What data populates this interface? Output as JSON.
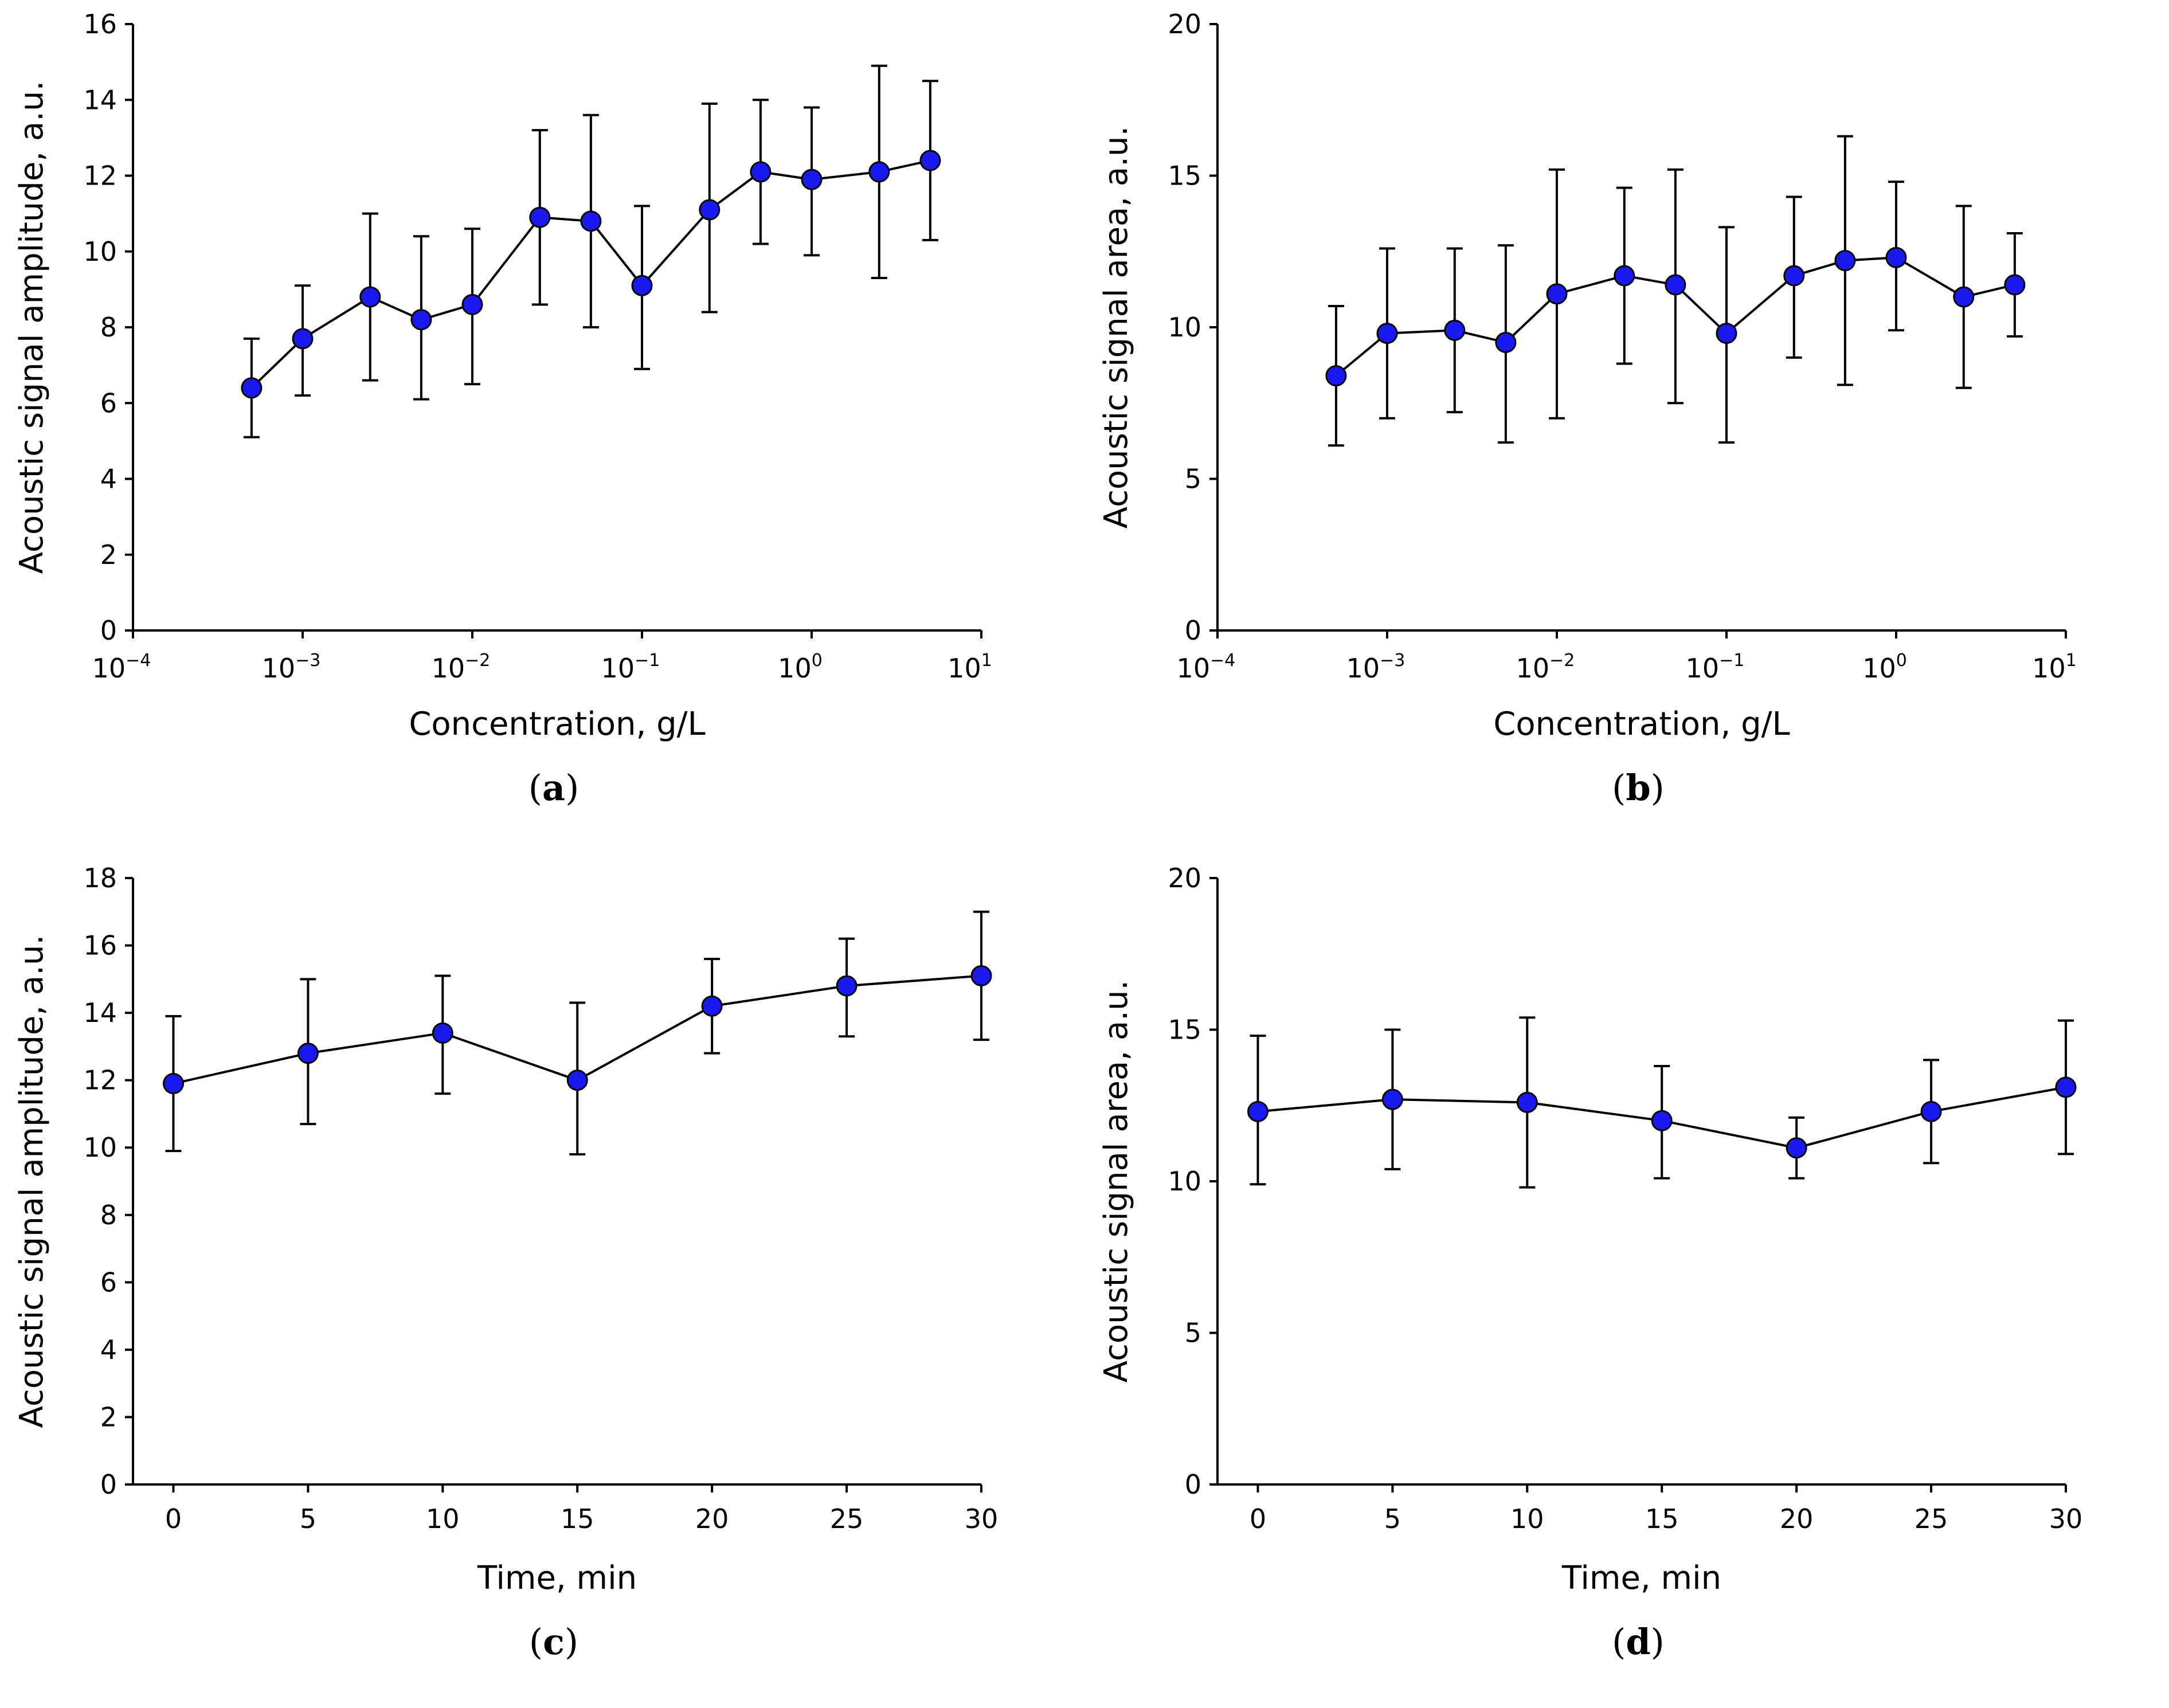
{
  "colors": {
    "marker": "#1a1af0",
    "axis": "#000000",
    "background": "#ffffff"
  },
  "chart_data": [
    {
      "id": "a",
      "type": "line",
      "xscale": "log",
      "panel_label": "a",
      "xlabel": "Concentration, g/L",
      "ylabel": "Acoustic signal amplitude, a.u.",
      "xlim": [
        0.0001,
        10
      ],
      "ylim": [
        0,
        16
      ],
      "yticks": [
        0,
        2,
        4,
        6,
        8,
        10,
        12,
        14,
        16
      ],
      "xticks": [
        {
          "value": 0.0001,
          "base": "10",
          "exp": "−4"
        },
        {
          "value": 0.001,
          "base": "10",
          "exp": "−3"
        },
        {
          "value": 0.01,
          "base": "10",
          "exp": "−2"
        },
        {
          "value": 0.1,
          "base": "10",
          "exp": "−1"
        },
        {
          "value": 1,
          "base": "10",
          "exp": "0"
        },
        {
          "value": 10,
          "base": "10",
          "exp": "1"
        }
      ],
      "points": [
        {
          "x": 0.0005,
          "y": 6.4,
          "lo": 5.1,
          "hi": 7.7
        },
        {
          "x": 0.001,
          "y": 7.7,
          "lo": 6.2,
          "hi": 9.1
        },
        {
          "x": 0.0025,
          "y": 8.8,
          "lo": 6.6,
          "hi": 11.0
        },
        {
          "x": 0.005,
          "y": 8.2,
          "lo": 6.1,
          "hi": 10.4
        },
        {
          "x": 0.01,
          "y": 8.6,
          "lo": 6.5,
          "hi": 10.6
        },
        {
          "x": 0.025,
          "y": 10.9,
          "lo": 8.6,
          "hi": 13.2
        },
        {
          "x": 0.05,
          "y": 10.8,
          "lo": 8.0,
          "hi": 13.6
        },
        {
          "x": 0.1,
          "y": 9.1,
          "lo": 6.9,
          "hi": 11.2
        },
        {
          "x": 0.25,
          "y": 11.1,
          "lo": 8.4,
          "hi": 13.9
        },
        {
          "x": 0.5,
          "y": 12.1,
          "lo": 10.2,
          "hi": 14.0
        },
        {
          "x": 1,
          "y": 11.9,
          "lo": 9.9,
          "hi": 13.8
        },
        {
          "x": 2.5,
          "y": 12.1,
          "lo": 9.3,
          "hi": 14.9
        },
        {
          "x": 5,
          "y": 12.4,
          "lo": 10.3,
          "hi": 14.5
        }
      ]
    },
    {
      "id": "b",
      "type": "line",
      "xscale": "log",
      "panel_label": "b",
      "xlabel": "Concentration, g/L",
      "ylabel": "Acoustic signal area, a.u.",
      "xlim": [
        0.0001,
        10
      ],
      "ylim": [
        0,
        20
      ],
      "yticks": [
        0,
        5,
        10,
        15,
        20
      ],
      "xticks": [
        {
          "value": 0.0001,
          "base": "10",
          "exp": "−4"
        },
        {
          "value": 0.001,
          "base": "10",
          "exp": "−3"
        },
        {
          "value": 0.01,
          "base": "10",
          "exp": "−2"
        },
        {
          "value": 0.1,
          "base": "10",
          "exp": "−1"
        },
        {
          "value": 1,
          "base": "10",
          "exp": "0"
        },
        {
          "value": 10,
          "base": "10",
          "exp": "1"
        }
      ],
      "points": [
        {
          "x": 0.0005,
          "y": 8.4,
          "lo": 6.1,
          "hi": 10.7
        },
        {
          "x": 0.001,
          "y": 9.8,
          "lo": 7.0,
          "hi": 12.6
        },
        {
          "x": 0.0025,
          "y": 9.9,
          "lo": 7.2,
          "hi": 12.6
        },
        {
          "x": 0.005,
          "y": 9.5,
          "lo": 6.2,
          "hi": 12.7
        },
        {
          "x": 0.01,
          "y": 11.1,
          "lo": 7.0,
          "hi": 15.2
        },
        {
          "x": 0.025,
          "y": 11.7,
          "lo": 8.8,
          "hi": 14.6
        },
        {
          "x": 0.05,
          "y": 11.4,
          "lo": 7.5,
          "hi": 15.2
        },
        {
          "x": 0.1,
          "y": 9.8,
          "lo": 6.2,
          "hi": 13.3
        },
        {
          "x": 0.25,
          "y": 11.7,
          "lo": 9.0,
          "hi": 14.3
        },
        {
          "x": 0.5,
          "y": 12.2,
          "lo": 8.1,
          "hi": 16.3
        },
        {
          "x": 1,
          "y": 12.3,
          "lo": 9.9,
          "hi": 14.8
        },
        {
          "x": 2.5,
          "y": 11.0,
          "lo": 8.0,
          "hi": 14.0
        },
        {
          "x": 5,
          "y": 11.4,
          "lo": 9.7,
          "hi": 13.1
        }
      ]
    },
    {
      "id": "c",
      "type": "line",
      "xscale": "linear",
      "panel_label": "c",
      "xlabel": "Time, min",
      "ylabel": "Acoustic signal amplitude, a.u.",
      "xlim": [
        -1.5,
        30
      ],
      "ylim": [
        0,
        18
      ],
      "yticks": [
        0,
        2,
        4,
        6,
        8,
        10,
        12,
        14,
        16,
        18
      ],
      "xticks": [
        {
          "value": 0,
          "label": "0"
        },
        {
          "value": 5,
          "label": "5"
        },
        {
          "value": 10,
          "label": "10"
        },
        {
          "value": 15,
          "label": "15"
        },
        {
          "value": 20,
          "label": "20"
        },
        {
          "value": 25,
          "label": "25"
        },
        {
          "value": 30,
          "label": "30"
        }
      ],
      "points": [
        {
          "x": 0,
          "y": 11.9,
          "lo": 9.9,
          "hi": 13.9
        },
        {
          "x": 5,
          "y": 12.8,
          "lo": 10.7,
          "hi": 15.0
        },
        {
          "x": 10,
          "y": 13.4,
          "lo": 11.6,
          "hi": 15.1
        },
        {
          "x": 15,
          "y": 12.0,
          "lo": 9.8,
          "hi": 14.3
        },
        {
          "x": 20,
          "y": 14.2,
          "lo": 12.8,
          "hi": 15.6
        },
        {
          "x": 25,
          "y": 14.8,
          "lo": 13.3,
          "hi": 16.2
        },
        {
          "x": 30,
          "y": 15.1,
          "lo": 13.2,
          "hi": 17.0
        }
      ]
    },
    {
      "id": "d",
      "type": "line",
      "xscale": "linear",
      "panel_label": "d",
      "xlabel": "Time, min",
      "ylabel": "Acoustic signal area, a.u.",
      "xlim": [
        -1.5,
        30
      ],
      "ylim": [
        0,
        20
      ],
      "yticks": [
        0,
        5,
        10,
        15,
        20
      ],
      "xticks": [
        {
          "value": 0,
          "label": "0"
        },
        {
          "value": 5,
          "label": "5"
        },
        {
          "value": 10,
          "label": "10"
        },
        {
          "value": 15,
          "label": "15"
        },
        {
          "value": 20,
          "label": "20"
        },
        {
          "value": 25,
          "label": "25"
        },
        {
          "value": 30,
          "label": "30"
        }
      ],
      "points": [
        {
          "x": 0,
          "y": 12.3,
          "lo": 9.9,
          "hi": 14.8
        },
        {
          "x": 5,
          "y": 12.7,
          "lo": 10.4,
          "hi": 15.0
        },
        {
          "x": 10,
          "y": 12.6,
          "lo": 9.8,
          "hi": 15.4
        },
        {
          "x": 15,
          "y": 12.0,
          "lo": 10.1,
          "hi": 13.8
        },
        {
          "x": 20,
          "y": 11.1,
          "lo": 10.1,
          "hi": 12.1
        },
        {
          "x": 25,
          "y": 12.3,
          "lo": 10.6,
          "hi": 14.0
        },
        {
          "x": 30,
          "y": 13.1,
          "lo": 10.9,
          "hi": 15.3
        }
      ]
    }
  ]
}
